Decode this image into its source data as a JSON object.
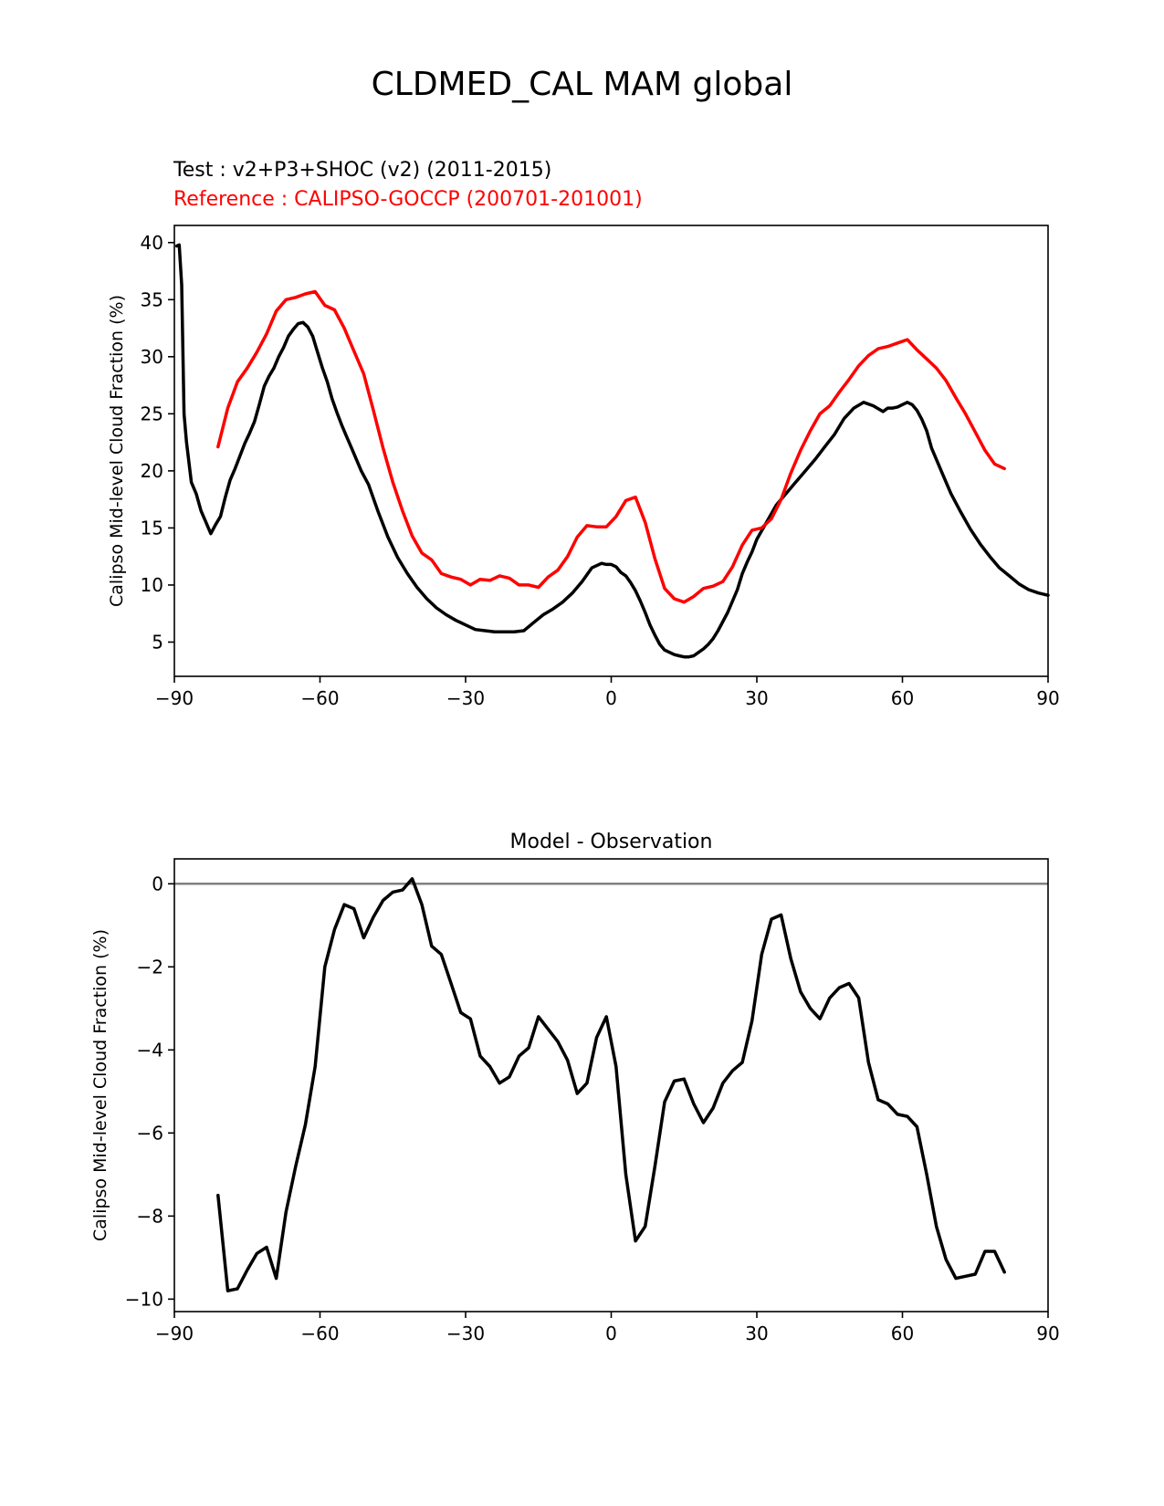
{
  "suptitle": "CLDMED_CAL MAM global",
  "test_label": "Test : v2+P3+SHOC (v2) (2011-2015)",
  "ref_label": "Reference : CALIPSO-GOCCP (200701-201001)",
  "colors": {
    "test": "#000000",
    "reference": "#ff0000",
    "diff": "#000000",
    "zero_line": "#808080"
  },
  "chart_data": [
    {
      "type": "line",
      "title": "",
      "xlabel": "",
      "ylabel": "Calipso Mid-level Cloud Fraction (%)",
      "xlim": [
        -90,
        90
      ],
      "ylim": [
        2,
        41.5
      ],
      "xticks": [
        -90,
        -60,
        -30,
        0,
        30,
        60,
        90
      ],
      "xtick_labels": [
        "−90",
        "−60",
        "−30",
        "0",
        "30",
        "60",
        "90"
      ],
      "yticks": [
        5,
        10,
        15,
        20,
        25,
        30,
        35,
        40
      ],
      "ytick_labels": [
        "5",
        "10",
        "15",
        "20",
        "25",
        "30",
        "35",
        "40"
      ],
      "series": [
        {
          "name": "Test : v2+P3+SHOC (v2) (2011-2015)",
          "x": [
            -89.5,
            -89,
            -88.5,
            -88,
            -87.5,
            -86.5,
            -85.5,
            -84.5,
            -83.5,
            -82.5,
            -81.5,
            -80.5,
            -79.5,
            -78.5,
            -77.5,
            -76.5,
            -75.5,
            -74.5,
            -73.5,
            -72.5,
            -71.5,
            -70.5,
            -69.5,
            -68.5,
            -67.5,
            -66.5,
            -65.5,
            -64.5,
            -63.5,
            -62.5,
            -61.5,
            -60.5,
            -59.5,
            -58.5,
            -57.5,
            -56.5,
            -55.5,
            -54.5,
            -53.5,
            -52.5,
            -51.5,
            -50,
            -48,
            -46,
            -44,
            -42,
            -40,
            -38,
            -36,
            -34,
            -32,
            -30,
            -28,
            -26,
            -24,
            -22,
            -20,
            -18,
            -16,
            -14,
            -12,
            -10,
            -8,
            -6,
            -4,
            -2,
            -1,
            0,
            1,
            2,
            3,
            4,
            5,
            6,
            7,
            8,
            9,
            10,
            11,
            12,
            13,
            14,
            15,
            16,
            17,
            18,
            19,
            20,
            21,
            22,
            23,
            24,
            25,
            26,
            27,
            28,
            29,
            30,
            32,
            34,
            36,
            38,
            40,
            42,
            44,
            46,
            48,
            50,
            52,
            54,
            56,
            57,
            58,
            59,
            60,
            61,
            62,
            63,
            64,
            65,
            66,
            68,
            70,
            72,
            74,
            76,
            78,
            80,
            82,
            84,
            86,
            88,
            90
          ],
          "values": [
            39.7,
            39.8,
            36.3,
            25.0,
            22.5,
            19.0,
            18.0,
            16.5,
            15.5,
            14.5,
            15.3,
            16.0,
            17.7,
            19.2,
            20.2,
            21.3,
            22.4,
            23.3,
            24.3,
            25.8,
            27.4,
            28.3,
            29.0,
            30.0,
            30.8,
            31.8,
            32.4,
            32.9,
            33.0,
            32.6,
            31.8,
            30.4,
            29.0,
            27.8,
            26.3,
            25.1,
            24.0,
            23.0,
            22.0,
            21.0,
            20.0,
            18.8,
            16.4,
            14.2,
            12.4,
            11.0,
            9.8,
            8.8,
            8.0,
            7.4,
            6.9,
            6.5,
            6.1,
            6.0,
            5.9,
            5.9,
            5.9,
            6.0,
            6.7,
            7.4,
            7.9,
            8.5,
            9.3,
            10.3,
            11.5,
            11.9,
            11.8,
            11.8,
            11.6,
            11.1,
            10.8,
            10.2,
            9.5,
            8.6,
            7.6,
            6.5,
            5.6,
            4.8,
            4.3,
            4.1,
            3.9,
            3.8,
            3.7,
            3.7,
            3.8,
            4.1,
            4.4,
            4.8,
            5.3,
            6.0,
            6.8,
            7.6,
            8.6,
            9.6,
            11.0,
            12.0,
            12.9,
            14.0,
            15.5,
            17.0,
            18.0,
            19.0,
            20.0,
            21.0,
            22.1,
            23.2,
            24.6,
            25.5,
            26.0,
            25.7,
            25.2,
            25.5,
            25.5,
            25.6,
            25.8,
            26.0,
            25.8,
            25.3,
            24.5,
            23.5,
            22.0,
            20.0,
            18.0,
            16.4,
            14.9,
            13.6,
            12.5,
            11.5,
            10.8,
            10.1,
            9.6,
            9.3,
            9.1
          ]
        },
        {
          "name": "Reference : CALIPSO-GOCCP (200701-201001)",
          "x": [
            -81,
            -79,
            -77,
            -75,
            -73,
            -71,
            -69,
            -67,
            -65,
            -63,
            -61,
            -59,
            -57,
            -55,
            -53,
            -51,
            -49,
            -47,
            -45,
            -43,
            -41,
            -39,
            -37,
            -35,
            -33,
            -31,
            -29,
            -27,
            -25,
            -23,
            -21,
            -19,
            -17,
            -15,
            -13,
            -11,
            -9,
            -7,
            -5,
            -3,
            -1,
            1,
            3,
            5,
            7,
            9,
            11,
            13,
            15,
            17,
            19,
            21,
            23,
            25,
            27,
            29,
            31,
            33,
            35,
            37,
            39,
            41,
            43,
            45,
            47,
            49,
            51,
            53,
            55,
            57,
            59,
            61,
            63,
            65,
            67,
            69,
            71,
            73,
            75,
            77,
            79,
            81
          ],
          "values": [
            22.1,
            25.5,
            27.8,
            29.0,
            30.4,
            32.0,
            34.0,
            35.0,
            35.2,
            35.5,
            35.7,
            34.5,
            34.1,
            32.5,
            30.5,
            28.5,
            25.3,
            22.0,
            19.0,
            16.5,
            14.3,
            12.8,
            12.2,
            11.0,
            10.7,
            10.5,
            10.0,
            10.5,
            10.4,
            10.8,
            10.6,
            10.0,
            10.0,
            9.8,
            10.7,
            11.3,
            12.5,
            14.2,
            15.2,
            15.1,
            15.1,
            16.0,
            17.4,
            17.7,
            15.5,
            12.3,
            9.7,
            8.8,
            8.5,
            9.0,
            9.7,
            9.9,
            10.3,
            11.6,
            13.5,
            14.8,
            15.0,
            15.8,
            17.5,
            19.8,
            21.8,
            23.5,
            25.0,
            25.7,
            26.9,
            28.0,
            29.2,
            30.1,
            30.7,
            30.9,
            31.2,
            31.5,
            30.6,
            29.8,
            29.0,
            27.9,
            26.4,
            25.0,
            23.4,
            21.8,
            20.6,
            20.2
          ]
        }
      ]
    },
    {
      "type": "line",
      "title": "Model - Observation",
      "xlabel": "",
      "ylabel": "Calipso Mid-level Cloud Fraction (%)",
      "xlim": [
        -90,
        90
      ],
      "ylim": [
        -10.3,
        0.6
      ],
      "xticks": [
        -90,
        -60,
        -30,
        0,
        30,
        60,
        90
      ],
      "xtick_labels": [
        "−90",
        "−60",
        "−30",
        "0",
        "30",
        "60",
        "90"
      ],
      "yticks": [
        0,
        -2,
        -4,
        -6,
        -8,
        -10
      ],
      "ytick_labels": [
        "0",
        "−2",
        "−4",
        "−6",
        "−8",
        "−10"
      ],
      "zero_line": 0,
      "series": [
        {
          "name": "Model - Observation",
          "x": [
            -81,
            -79,
            -77,
            -75,
            -73,
            -71,
            -69,
            -67,
            -65,
            -63,
            -61,
            -59,
            -57,
            -55,
            -53,
            -51,
            -49,
            -47,
            -45,
            -43,
            -41,
            -39,
            -37,
            -35,
            -33,
            -31,
            -29,
            -27,
            -25,
            -23,
            -21,
            -19,
            -17,
            -15,
            -13,
            -11,
            -9,
            -7,
            -5,
            -3,
            -1,
            1,
            3,
            5,
            7,
            9,
            11,
            13,
            15,
            17,
            19,
            21,
            23,
            25,
            27,
            29,
            31,
            33,
            35,
            37,
            39,
            41,
            43,
            45,
            47,
            49,
            51,
            53,
            55,
            57,
            59,
            61,
            63,
            65,
            67,
            69,
            71,
            73,
            75,
            77,
            79,
            81
          ],
          "values": [
            -7.5,
            -9.8,
            -9.75,
            -9.3,
            -8.9,
            -8.75,
            -9.5,
            -7.9,
            -6.8,
            -5.8,
            -4.4,
            -2.0,
            -1.1,
            -0.5,
            -0.6,
            -1.3,
            -0.8,
            -0.4,
            -0.2,
            -0.15,
            0.12,
            -0.5,
            -1.5,
            -1.7,
            -2.4,
            -3.1,
            -3.25,
            -4.15,
            -4.4,
            -4.8,
            -4.65,
            -4.15,
            -3.95,
            -3.2,
            -3.5,
            -3.8,
            -4.25,
            -5.05,
            -4.8,
            -3.7,
            -3.2,
            -4.4,
            -7.0,
            -8.6,
            -8.25,
            -6.8,
            -5.25,
            -4.75,
            -4.7,
            -5.3,
            -5.75,
            -5.4,
            -4.8,
            -4.5,
            -4.3,
            -3.3,
            -1.7,
            -0.85,
            -0.75,
            -1.8,
            -2.6,
            -3.0,
            -3.25,
            -2.75,
            -2.5,
            -2.4,
            -2.75,
            -4.3,
            -5.2,
            -5.3,
            -5.55,
            -5.6,
            -5.85,
            -7.0,
            -8.25,
            -9.05,
            -9.5,
            -9.45,
            -9.4,
            -8.85,
            -8.85,
            -9.35
          ]
        }
      ]
    }
  ]
}
